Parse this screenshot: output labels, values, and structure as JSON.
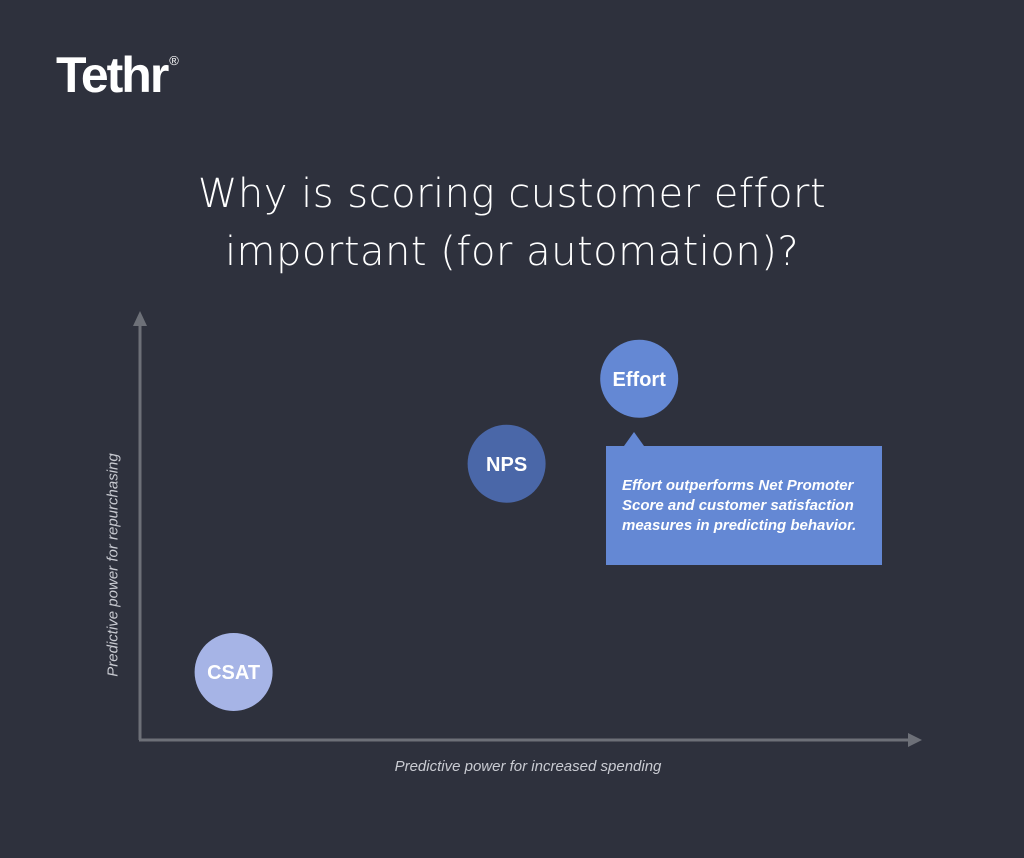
{
  "logo": {
    "text": "Tethr",
    "mark": "®"
  },
  "chart_data": {
    "type": "scatter",
    "title": "Why is scoring customer effort important (for automation)?",
    "xlabel": "Predictive power for increased spending",
    "ylabel": "Predictive power for repurchasing",
    "xlim": [
      0,
      100
    ],
    "ylim": [
      0,
      100
    ],
    "grid": false,
    "points": [
      {
        "label": "CSAT",
        "x": 12,
        "y": 16,
        "color": "#a6b4e6"
      },
      {
        "label": "NPS",
        "x": 47,
        "y": 65,
        "color": "#4a67a8"
      },
      {
        "label": "Effort",
        "x": 64,
        "y": 85,
        "color": "#6488d4"
      }
    ],
    "annotation": "Effort outperforms Net Promoter Score and customer satisfaction measures in predicting behavior."
  },
  "colors": {
    "background": "#2e313d",
    "axis": "#6d7078",
    "callout": "#6488d4"
  }
}
